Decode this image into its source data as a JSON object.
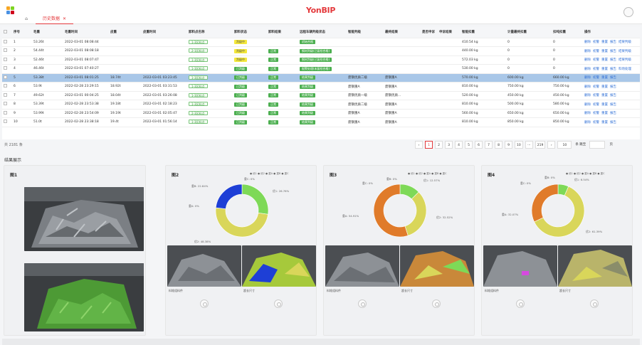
{
  "app": {
    "brand": "YonBIP"
  },
  "tabs": [
    {
      "label": ""
    },
    {
      "label": "历史数据",
      "close": "✕"
    }
  ],
  "table": {
    "headers": [
      "序号",
      "毛重",
      "毛重时间",
      "皮重",
      "皮重时间",
      "卸料点名称",
      "卸料状态",
      "卸料结果",
      "远程车辆判级状态",
      "智能判级",
      "最终结果",
      "是否申诉",
      "申诉结果",
      "智能扣重",
      "计量最终扣重",
      "扣吨扣重",
      "操作"
    ],
    "rows": [
      {
        "idx": "1",
        "gross": "53.26t",
        "gtime": "2022-03-01 08:08:44",
        "tare": "",
        "ttime": "",
        "point": "1-3区料点",
        "status": "判级中",
        "result": "",
        "remote": "初始合格",
        "grade": "",
        "final": "",
        "appeal": "",
        "aresult": "",
        "deduct": "410.54 kg",
        "fdeduct": "0",
        "tdeduct": "0",
        "ops": [
          "删除",
          "初警",
          "重置",
          "报告",
          "结果判级"
        ],
        "st": "y",
        "rs": "",
        "rm": "g",
        "sel": false
      },
      {
        "idx": "2",
        "gross": "54.44t",
        "gtime": "2022-03-01 08:08:18",
        "tare": "",
        "ttime": "",
        "point": "2-1区料点",
        "status": "判级中",
        "result": "正常",
        "remote": "钢材判级(已复检合格)",
        "grade": "",
        "final": "",
        "appeal": "",
        "aresult": "",
        "deduct": "440.00 kg",
        "fdeduct": "0",
        "tdeduct": "0",
        "ops": [
          "删除",
          "初警",
          "重置",
          "报告",
          "结果判级"
        ],
        "st": "y",
        "rs": "g",
        "rm": "g",
        "sel": false
      },
      {
        "idx": "3",
        "gross": "52.46t",
        "gtime": "2022-03-01 08:07:47",
        "tare": "",
        "ttime": "",
        "point": "1-3区料点",
        "status": "判级中",
        "result": "正常",
        "remote": "钢材判级(已复检合格)",
        "grade": "",
        "final": "",
        "appeal": "",
        "aresult": "",
        "deduct": "572.03 kg",
        "fdeduct": "0",
        "tdeduct": "0",
        "ops": [
          "删除",
          "初警",
          "重置",
          "报告",
          "结果判级"
        ],
        "st": "y",
        "rs": "g",
        "rm": "g",
        "sel": false
      },
      {
        "idx": "4",
        "gross": "46.46t",
        "gtime": "2022-03-01 07:40:27",
        "tare": "",
        "ttime": "",
        "point": "1-3区料点",
        "status": "已判级",
        "result": "正常",
        "remote": "报警处理(未复检合格)",
        "grade": "",
        "final": "",
        "appeal": "",
        "aresult": "",
        "deduct": "530.00 kg",
        "fdeduct": "0",
        "tdeduct": "0",
        "ops": [
          "删除",
          "初警",
          "重置",
          "报告",
          "料场处理"
        ],
        "st": "g",
        "rs": "g",
        "rm": "g",
        "sel": false
      },
      {
        "idx": "5",
        "gross": "53.38t",
        "gtime": "2022-03-01 08:01:25",
        "tare": "18.74t",
        "ttime": "2022-03-01 03:23:45",
        "point": "1-3区料点",
        "status": "已判级",
        "result": "正常",
        "remote": "结果判级",
        "grade": "废钢优质二级",
        "final": "废钢重A",
        "appeal": "",
        "aresult": "",
        "deduct": "570.00 kg",
        "fdeduct": "600.00 kg",
        "tdeduct": "660.00 kg",
        "ops": [
          "删除",
          "初警",
          "重置",
          "报告"
        ],
        "st": "g",
        "rs": "g",
        "rm": "g",
        "sel": true
      },
      {
        "idx": "6",
        "gross": "53.9t",
        "gtime": "2022-02-28 23:29:15",
        "tare": "18.92t",
        "ttime": "2022-03-01 03:31:53",
        "point": "1-3区料点",
        "status": "已判级",
        "result": "正常",
        "remote": "结果判级",
        "grade": "废钢重A",
        "final": "废钢重A",
        "appeal": "",
        "aresult": "",
        "deduct": "810.00 kg",
        "fdeduct": "750.00 kg",
        "tdeduct": "750.00 kg",
        "ops": [
          "删除",
          "初警",
          "重置",
          "报告"
        ],
        "st": "g",
        "rs": "g",
        "rm": "g",
        "sel": false
      },
      {
        "idx": "7",
        "gross": "49.62t",
        "gtime": "2022-03-01 00:04:25",
        "tare": "18.04t",
        "ttime": "2022-03-01 03:26:08",
        "point": "1-3区料点",
        "status": "已判级",
        "result": "正常",
        "remote": "结果判级",
        "grade": "废钢优质一级",
        "final": "废钢优质...",
        "appeal": "",
        "aresult": "",
        "deduct": "520.00 kg",
        "fdeduct": "450.00 kg",
        "tdeduct": "450.00 kg",
        "ops": [
          "删除",
          "初警",
          "重置",
          "报告"
        ],
        "st": "g",
        "rs": "g",
        "rm": "g",
        "sel": false
      },
      {
        "idx": "8",
        "gross": "53.39t",
        "gtime": "2022-02-28 23:53:38",
        "tare": "19.18t",
        "ttime": "2022-03-01 02:18:23",
        "point": "1-3区料点",
        "status": "已判级",
        "result": "正常",
        "remote": "结果判级",
        "grade": "废钢优质二级",
        "final": "废钢重A",
        "appeal": "",
        "aresult": "",
        "deduct": "810.00 kg",
        "fdeduct": "500.00 kg",
        "tdeduct": "580.00 kg",
        "ops": [
          "删除",
          "初警",
          "重置",
          "报告"
        ],
        "st": "g",
        "rs": "g",
        "rm": "g",
        "sel": false
      },
      {
        "idx": "9",
        "gross": "53.99t",
        "gtime": "2022-02-28 23:54:09",
        "tare": "19.19t",
        "ttime": "2022-03-01 02:05:47",
        "point": "2-3区料点",
        "status": "已判级",
        "result": "正常",
        "remote": "结果判级",
        "grade": "废钢重A",
        "final": "废钢重A",
        "appeal": "",
        "aresult": "",
        "deduct": "560.00 kg",
        "fdeduct": "650.00 kg",
        "tdeduct": "650.00 kg",
        "ops": [
          "删除",
          "初警",
          "重置",
          "报告"
        ],
        "st": "g",
        "rs": "g",
        "rm": "g",
        "sel": false
      },
      {
        "idx": "10",
        "gross": "51.0t",
        "gtime": "2022-02-28 23:38:18",
        "tare": "19.4t",
        "ttime": "2022-03-01 01:56:14",
        "point": "1-3区料点",
        "status": "已判级",
        "result": "正常",
        "remote": "结果判级",
        "grade": "废钢重A",
        "final": "废钢重A",
        "appeal": "",
        "aresult": "",
        "deduct": "810.00 kg",
        "fdeduct": "850.00 kg",
        "tdeduct": "850.00 kg",
        "ops": [
          "删除",
          "初警",
          "重置",
          "报告"
        ],
        "st": "g",
        "rs": "g",
        "rm": "g",
        "sel": false
      }
    ]
  },
  "pager": {
    "total": "共 2181 条",
    "pages": [
      "‹",
      "1",
      "2",
      "3",
      "4",
      "5",
      "6",
      "7",
      "8",
      "9",
      "10",
      "···",
      "219",
      "›"
    ],
    "size": "10",
    "go": "条 跳至",
    "unit": "页"
  },
  "results": {
    "title": "结果展示"
  },
  "panels": [
    {
      "title": "图1"
    },
    {
      "title": "图2",
      "legend": "● 优1 ● 优2 ● 重A ● 重B ● 重C",
      "labels": [
        "重C: 0%",
        "重B: 22.84%",
        "优1: 26.76%",
        "重A: 0%",
        "优2: 48.38%"
      ],
      "captions": [
        "料堆组料件",
        "超长尺寸"
      ]
    },
    {
      "title": "图3",
      "legend": "● 优1 ● 优2 ● 重A ● 重B ● 重C",
      "labels": [
        "重B: 0%",
        "重C: 0%",
        "优1: 12.57%",
        "重A: 54.91%",
        "优2: 32.52%"
      ],
      "captions": [
        "料堆组料件",
        "超长尺寸"
      ]
    },
    {
      "title": "图4",
      "legend": "● 优1 ● 优2 ● 重A ● 重B ● 重C",
      "labels": [
        "重B: 0%",
        "重C: 0%",
        "优1: 6.54%",
        "重A: 32.07%",
        "优2: 61.39%"
      ],
      "captions": [
        "料堆组料件",
        "超长尺寸"
      ]
    }
  ],
  "chart_data": [
    {
      "type": "pie",
      "title": "图2",
      "categories": [
        "优1",
        "优2",
        "重A",
        "重B",
        "重C"
      ],
      "values": [
        26.76,
        48.38,
        0,
        22.84,
        0
      ],
      "colors": [
        "#7ed957",
        "#d9d65a",
        "#e07b2a",
        "#1e3fd6",
        "#3ec8c8"
      ]
    },
    {
      "type": "pie",
      "title": "图3",
      "categories": [
        "优1",
        "优2",
        "重A",
        "重B",
        "重C"
      ],
      "values": [
        12.57,
        32.52,
        54.91,
        0,
        0
      ],
      "colors": [
        "#7ed957",
        "#d9d65a",
        "#e07b2a",
        "#1e3fd6",
        "#3ec8c8"
      ]
    },
    {
      "type": "pie",
      "title": "图4",
      "categories": [
        "优1",
        "优2",
        "重A",
        "重B",
        "重C"
      ],
      "values": [
        6.54,
        61.39,
        32.07,
        0,
        0
      ],
      "colors": [
        "#7ed957",
        "#d9d65a",
        "#e07b2a",
        "#1e3fd6",
        "#3ec8c8"
      ]
    }
  ]
}
